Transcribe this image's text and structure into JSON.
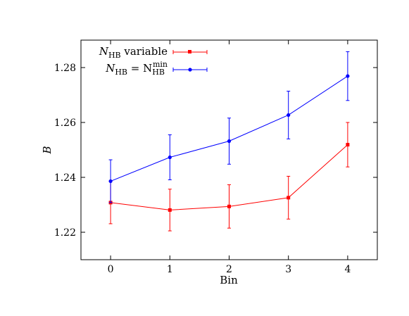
{
  "chart_data": {
    "type": "line",
    "title": "",
    "xlabel": "Bin",
    "ylabel": "B",
    "x": [
      0,
      1,
      2,
      3,
      4
    ],
    "xlim": [
      -0.5,
      4.5
    ],
    "ylim": [
      1.21,
      1.29
    ],
    "xticks": [
      "0",
      "1",
      "2",
      "3",
      "4"
    ],
    "yticks": [
      "1.22",
      "1.24",
      "1.26",
      "1.28"
    ],
    "grid": false,
    "legend_position": "top-left",
    "series": [
      {
        "name_main": "N",
        "name_sub": "HB",
        "name_rest": " variable",
        "color": "#ff0000",
        "marker": "square",
        "values": [
          1.2308,
          1.2281,
          1.2294,
          1.2326,
          1.2519
        ],
        "errors": [
          0.0077,
          0.0076,
          0.0079,
          0.0078,
          0.0081
        ]
      },
      {
        "name_main": "N",
        "name_sub": "HB",
        "name_rest": " = N",
        "name_sub2": "HB",
        "name_sup2": "min",
        "color": "#0000ff",
        "marker": "circle",
        "values": [
          1.2386,
          1.2473,
          1.2532,
          1.2627,
          1.2769
        ],
        "errors": [
          0.0078,
          0.0082,
          0.0084,
          0.0087,
          0.0089
        ]
      }
    ]
  }
}
